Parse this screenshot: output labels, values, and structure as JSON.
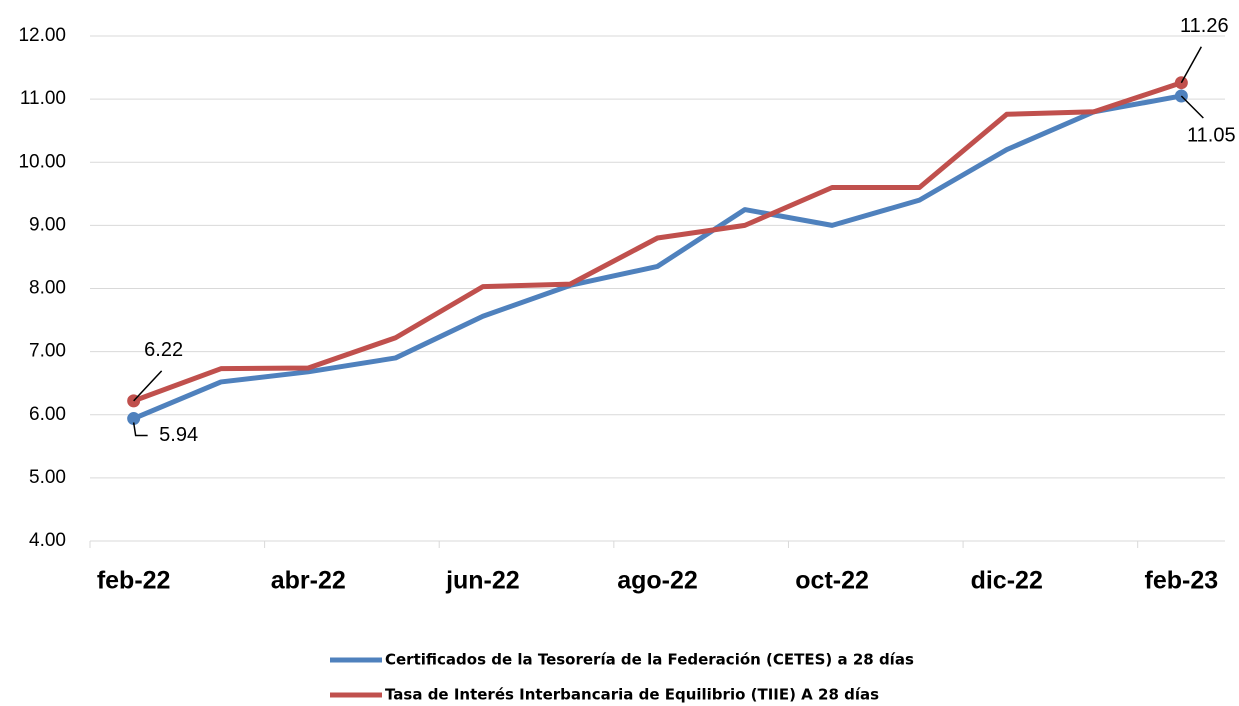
{
  "chart_data": {
    "type": "line",
    "categories": [
      "feb-22",
      null,
      "abr-22",
      null,
      "jun-22",
      null,
      "ago-22",
      null,
      "oct-22",
      null,
      "dic-22",
      null,
      "feb-23"
    ],
    "series": [
      {
        "name": "Certificados de la Tesorería de la Federación (CETES) a 28 días",
        "color": "#4f81bd",
        "values": [
          5.94,
          6.52,
          6.68,
          6.9,
          7.56,
          8.05,
          8.35,
          9.25,
          9.0,
          9.4,
          10.2,
          10.8,
          11.05
        ]
      },
      {
        "name": "Tasa de Interés Interbancaria de Equilibrio (TIIE) A 28 días",
        "color": "#c0504d",
        "values": [
          6.22,
          6.73,
          6.74,
          7.22,
          8.03,
          8.07,
          8.8,
          9.0,
          9.6,
          9.6,
          10.76,
          10.8,
          11.26
        ]
      }
    ],
    "ylim": [
      4,
      12
    ],
    "yticks": [
      {
        "value": 4,
        "label": "4.00"
      },
      {
        "value": 5,
        "label": "5.00"
      },
      {
        "value": 6,
        "label": "6.00"
      },
      {
        "value": 7,
        "label": "7.00"
      },
      {
        "value": 8,
        "label": "8.00"
      },
      {
        "value": 9,
        "label": "9.00"
      },
      {
        "value": 10,
        "label": "10.00"
      },
      {
        "value": 11,
        "label": "11.00"
      },
      {
        "value": 12,
        "label": "12.00"
      }
    ],
    "grid": true,
    "data_labels": "ends",
    "legend": "bottom"
  }
}
